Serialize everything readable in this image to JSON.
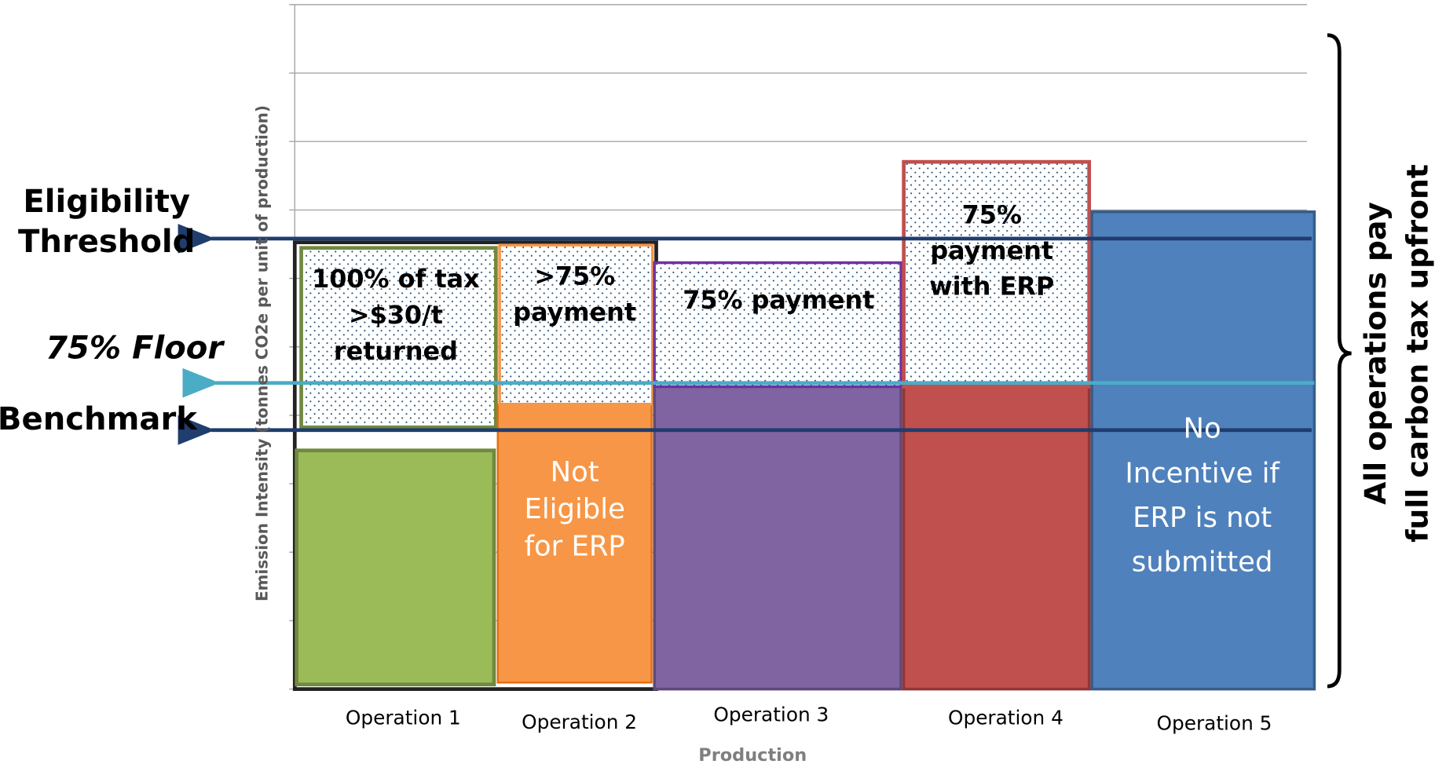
{
  "y_axis_label": "Emission Intensity  (tonnes CO2e per unit of production)",
  "x_axis_label": "Production",
  "operations": [
    {
      "label": "Operation 1",
      "box_text": [
        "100% of tax",
        ">$30/t",
        "returned"
      ],
      "bar_text": []
    },
    {
      "label": "Operation 2",
      "box_text": [
        ">75%",
        "payment"
      ],
      "bar_text": [
        "Not",
        "Eligible",
        "for ERP"
      ]
    },
    {
      "label": "Operation 3",
      "box_text": [
        "75% payment"
      ],
      "bar_text": []
    },
    {
      "label": "Operation 4",
      "box_text": [
        "75%",
        "payment",
        "with ERP"
      ],
      "bar_text": []
    },
    {
      "label": "Operation 5",
      "box_text": [],
      "bar_text": [
        "No",
        "Incentive if",
        "ERP is not",
        "submitted"
      ]
    }
  ],
  "lines": [
    {
      "label": [
        "Eligibility",
        "Threshold"
      ]
    },
    {
      "label": [
        "75% Floor"
      ]
    },
    {
      "label": [
        "Benchmark"
      ]
    }
  ],
  "side_note": [
    "All operations pay",
    "full carbon tax upfront"
  ]
}
